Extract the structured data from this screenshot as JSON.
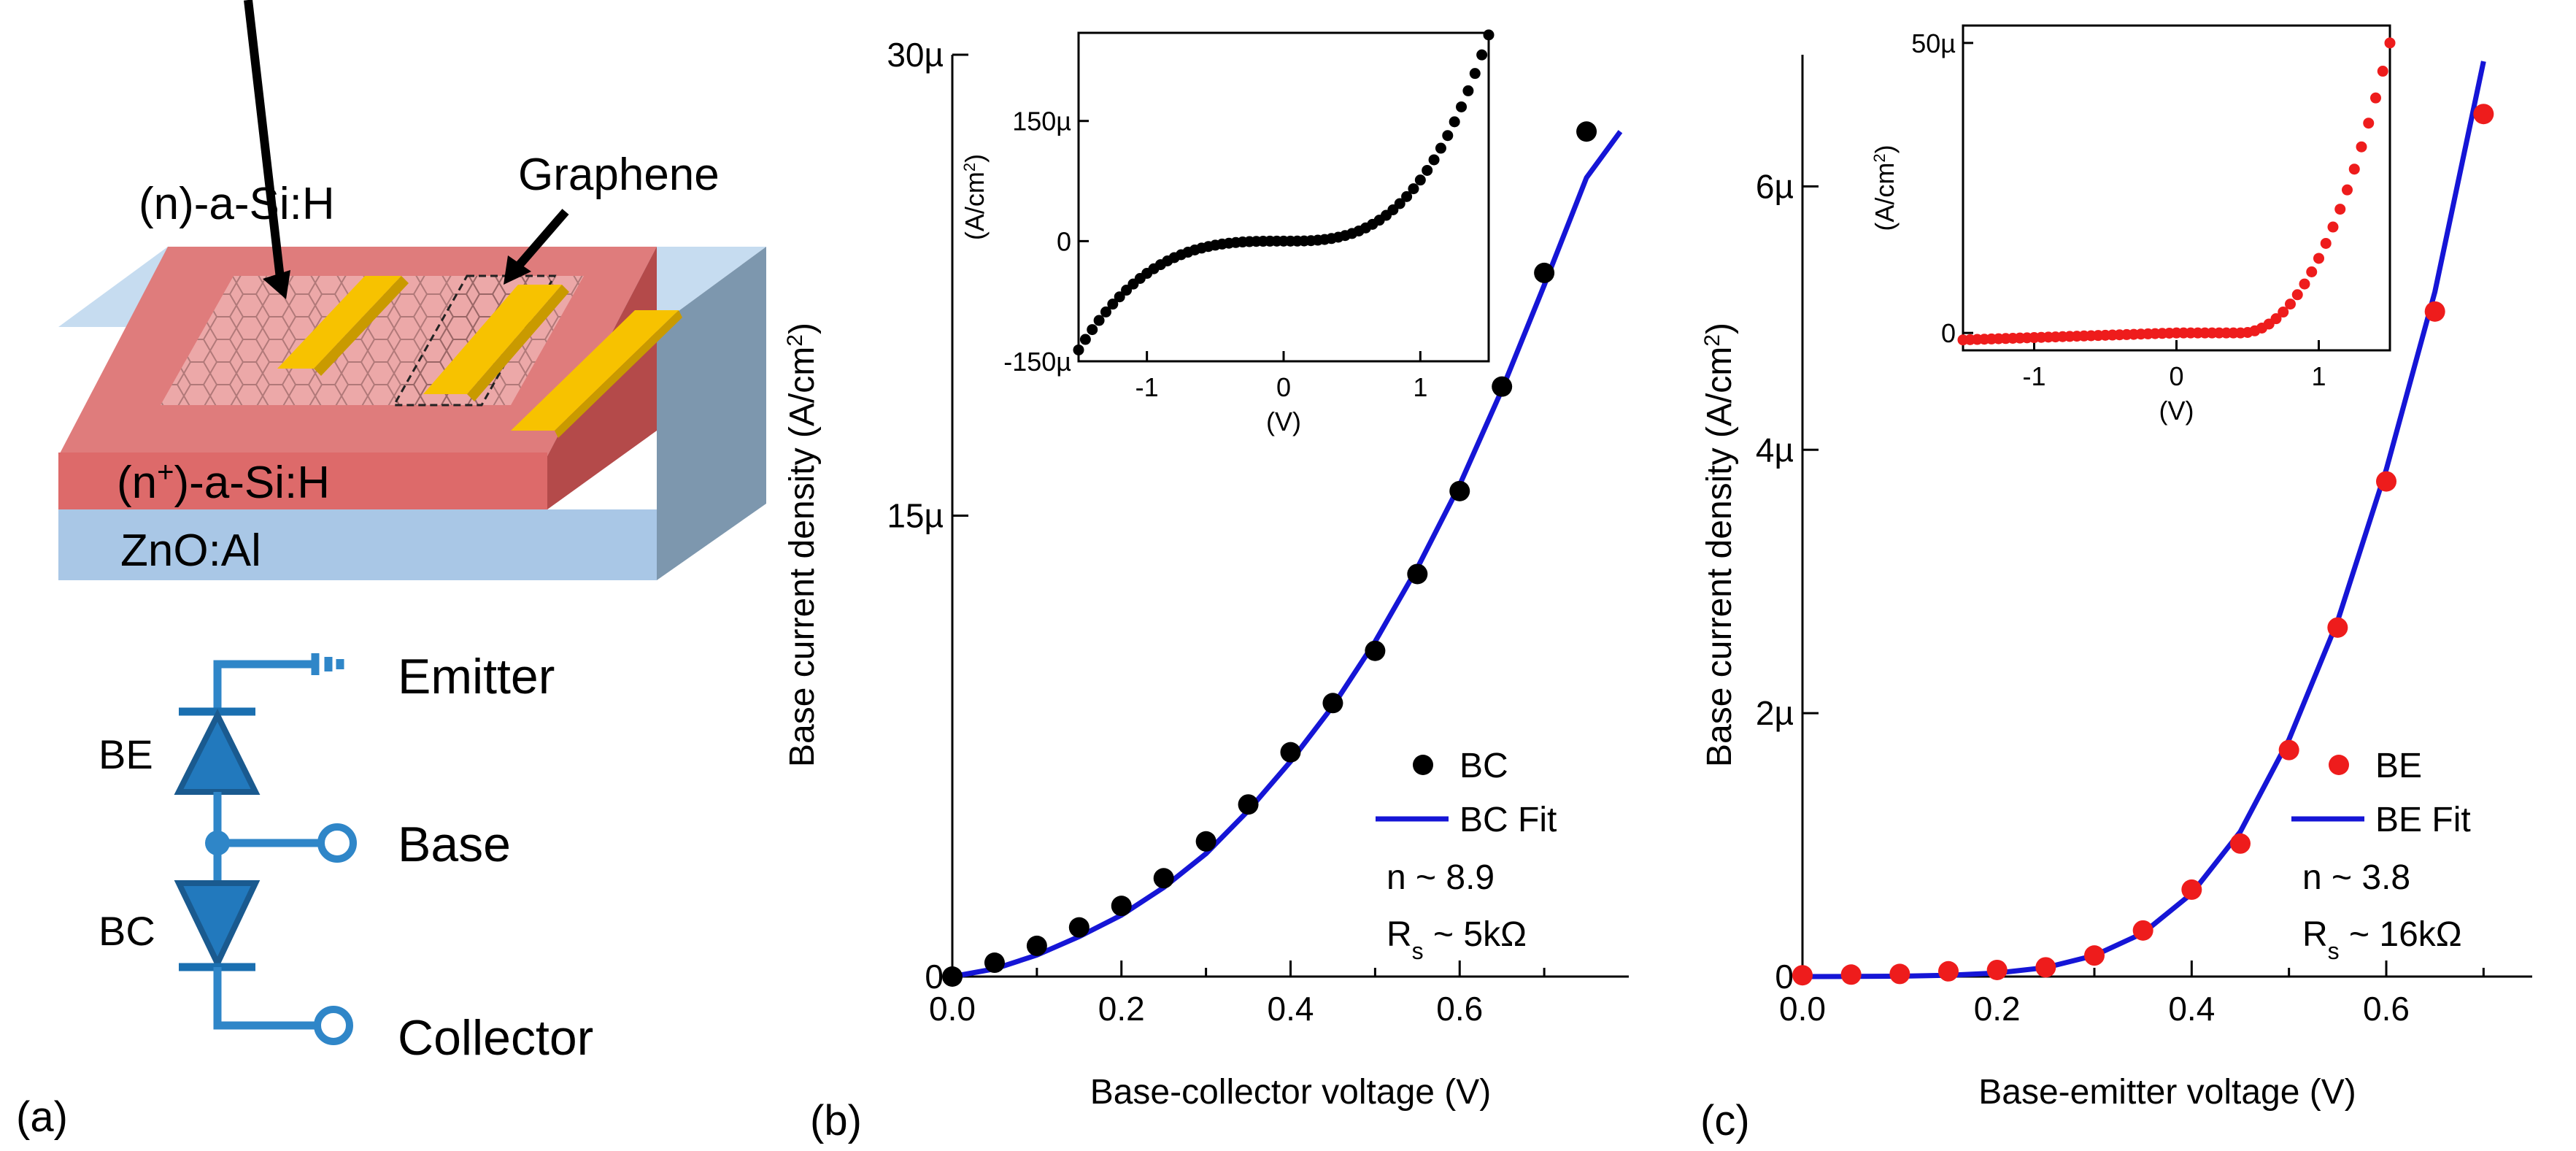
{
  "panel_a": {
    "label": "(a)",
    "layer_n_asi": "(n)-a-Si:H",
    "graphene": "Graphene",
    "layer_nplus_asi_prefix": "(n",
    "layer_nplus_asi_sup": "+",
    "layer_nplus_asi_suffix": ")-a-Si:H",
    "substrate": "ZnO:Al",
    "circuit": {
      "emitter": "Emitter",
      "base": "Base",
      "collector": "Collector",
      "diode_be": "BE",
      "diode_bc": "BC"
    },
    "colors": {
      "top_layer": "#d96b6b",
      "substrate": "#a9c7e6",
      "contact": "#f7c200",
      "circuit": "#2f86c8"
    }
  },
  "chart_data": [
    {
      "id": "b",
      "panel_label": "(b)",
      "type": "scatter",
      "xlabel": "Base-collector voltage (V)",
      "ylabel_prefix": "Base current density (A/cm",
      "ylabel_sup": "2",
      "ylabel_suffix": ")",
      "xlim": [
        0,
        0.8
      ],
      "ylim": [
        0,
        3e-05
      ],
      "xticks": [
        0,
        0.2,
        0.4,
        0.6
      ],
      "xtick_labels": [
        "0.0",
        "0.2",
        "0.4",
        "0.6"
      ],
      "yticks": [
        0,
        1.5e-05,
        3e-05
      ],
      "ytick_labels": [
        "0",
        "15µ",
        "30µ"
      ],
      "series": [
        {
          "name": "BC",
          "type": "scatter",
          "color": "#000000",
          "x": [
            0,
            0.05,
            0.1,
            0.15,
            0.2,
            0.25,
            0.3,
            0.35,
            0.4,
            0.45,
            0.5,
            0.55,
            0.6,
            0.65,
            0.7,
            0.75
          ],
          "y": [
            0,
            4.5e-07,
            1e-06,
            1.6e-06,
            2.3e-06,
            3.2e-06,
            4.4e-06,
            5.6e-06,
            7.3e-06,
            8.9e-06,
            1.06e-05,
            1.31e-05,
            1.58e-05,
            1.92e-05,
            2.29e-05,
            2.75e-05
          ]
        },
        {
          "name": "BC Fit",
          "type": "line",
          "color": "#1515d6",
          "x": [
            0,
            0.05,
            0.1,
            0.15,
            0.2,
            0.25,
            0.3,
            0.35,
            0.4,
            0.45,
            0.5,
            0.55,
            0.6,
            0.65,
            0.7,
            0.75,
            0.79
          ],
          "y": [
            0,
            2.5e-07,
            7e-07,
            1.3e-06,
            2e-06,
            2.9e-06,
            4e-06,
            5.4e-06,
            7e-06,
            8.8e-06,
            1.09e-05,
            1.33e-05,
            1.6e-05,
            1.91e-05,
            2.25e-05,
            2.6e-05,
            2.75e-05
          ]
        }
      ],
      "annotations": {
        "n": "n ~ 8.9",
        "rs_prefix": "R",
        "rs_sub": "s",
        "rs_suffix": " ~ 5kΩ"
      },
      "inset": {
        "xlabel": "(V)",
        "ylabel_prefix": "(A/cm",
        "ylabel_sup": "2",
        "ylabel_suffix": ")",
        "xlim": [
          -1.5,
          1.5
        ],
        "ylim": [
          -0.00015,
          0.00026
        ],
        "xticks": [
          -1,
          0,
          1
        ],
        "xtick_labels": [
          "-1",
          "0",
          "1"
        ],
        "yticks": [
          -0.00015,
          0,
          0.00015
        ],
        "ytick_labels": [
          "-150µ",
          "0",
          "150µ"
        ],
        "curve": "antisym",
        "color": "#000000"
      }
    },
    {
      "id": "c",
      "panel_label": "(c)",
      "type": "scatter",
      "xlabel": "Base-emitter voltage (V)",
      "ylabel_prefix": "Base current density (A/cm",
      "ylabel_sup": "2",
      "ylabel_suffix": ")",
      "xlim": [
        0,
        0.75
      ],
      "ylim": [
        0,
        7e-06
      ],
      "xticks": [
        0,
        0.2,
        0.4,
        0.6
      ],
      "xtick_labels": [
        "0.0",
        "0.2",
        "0.4",
        "0.6"
      ],
      "yticks": [
        0,
        2e-06,
        4e-06,
        6e-06
      ],
      "ytick_labels": [
        "0",
        "2µ",
        "4µ",
        "6µ"
      ],
      "series": [
        {
          "name": "BE",
          "type": "scatter",
          "color": "#ee1c1c",
          "x": [
            0,
            0.05,
            0.1,
            0.15,
            0.2,
            0.25,
            0.3,
            0.35,
            0.4,
            0.45,
            0.5,
            0.55,
            0.6,
            0.65,
            0.7
          ],
          "y": [
            1e-08,
            1.5e-08,
            2e-08,
            4e-08,
            5e-08,
            7e-08,
            1.6e-07,
            3.5e-07,
            6.6e-07,
            1.01e-06,
            1.72e-06,
            2.65e-06,
            3.76e-06,
            5.05e-06,
            6.55e-06
          ]
        },
        {
          "name": "BE Fit",
          "type": "line",
          "color": "#1515d6",
          "x": [
            0,
            0.05,
            0.1,
            0.15,
            0.2,
            0.25,
            0.3,
            0.35,
            0.4,
            0.45,
            0.5,
            0.55,
            0.6,
            0.65,
            0.7
          ],
          "y": [
            0,
            1e-09,
            3e-09,
            1e-08,
            2.7e-08,
            6.8e-08,
            1.6e-07,
            3.3e-07,
            6.3e-07,
            1.1e-06,
            1.8e-06,
            2.7e-06,
            3.85e-06,
            5.2e-06,
            6.95e-06
          ]
        }
      ],
      "annotations": {
        "n": "n ~ 3.8",
        "rs_prefix": "R",
        "rs_sub": "s",
        "rs_suffix": " ~ 16kΩ"
      },
      "inset": {
        "xlabel": "(V)",
        "ylabel_prefix": "(A/cm",
        "ylabel_sup": "2",
        "ylabel_suffix": ")",
        "xlim": [
          -1.5,
          1.5
        ],
        "ylim": [
          -3e-06,
          5.3e-05
        ],
        "xticks": [
          -1,
          0,
          1
        ],
        "xtick_labels": [
          "-1",
          "0",
          "1"
        ],
        "yticks": [
          0,
          5e-05
        ],
        "ytick_labels": [
          "0",
          "50µ"
        ],
        "curve": "diode",
        "color": "#ee1c1c"
      }
    }
  ]
}
